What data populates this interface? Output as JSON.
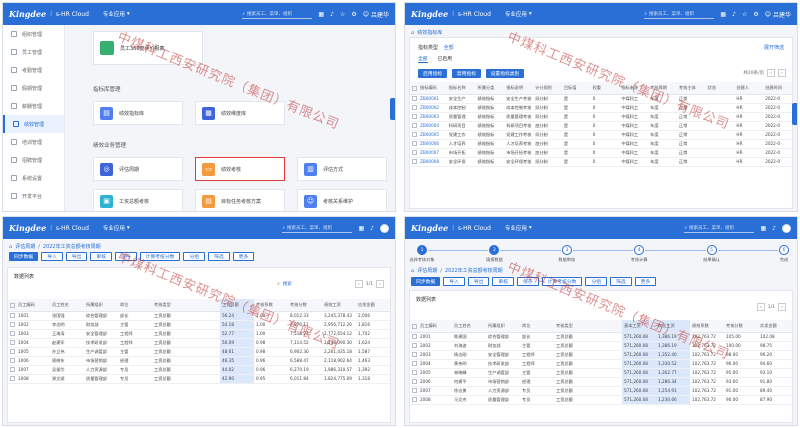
{
  "topbar": {
    "logo": "Kingdee",
    "app": "s-HR Cloud",
    "menu": "专业应用",
    "search_placeholder": "搜索员工、菜单、组织",
    "user": "吕建华"
  },
  "panel1": {
    "sidebar": [
      {
        "label": "组织管理",
        "active": false
      },
      {
        "label": "员工管理",
        "active": false
      },
      {
        "label": "考勤管理",
        "active": false
      },
      {
        "label": "假期管理",
        "active": false
      },
      {
        "label": "薪酬管理",
        "active": false
      },
      {
        "label": "绩效管理",
        "active": true
      },
      {
        "label": "培训管理",
        "active": false
      },
      {
        "label": "招聘管理",
        "active": false
      },
      {
        "label": "系统设置",
        "active": false
      },
      {
        "label": "开发平台",
        "active": false
      }
    ],
    "top_card": "员工360度评价报表",
    "section_indicator": "指标库管理",
    "tiles_indicator": [
      "绩效指标库",
      "绩效维度库"
    ],
    "section_execute": "绩效业务管理",
    "tiles_execute": [
      "评估周期",
      "绩效考核",
      "评估方式",
      "工资总额考核",
      "目标任务考核方案",
      "考核关系维护"
    ]
  },
  "panel2": {
    "breadcrumb": [
      "首页",
      "绩效指标库"
    ],
    "filter_label": "指标类型",
    "filter_value": "全部",
    "filter_link": "展开筛选",
    "tabs": [
      "全部",
      "已启用"
    ],
    "buttons": [
      "启用指标",
      "禁用指标",
      "设置指标类别"
    ],
    "pager": "共20条/页",
    "columns": [
      "指标编码",
      "指标名称",
      "所属分类",
      "指标说明",
      "计分规则",
      "目标值",
      "权重",
      "指标来源",
      "考核周期",
      "考核主体",
      "状态",
      "创建人",
      "创建时间"
    ],
    "rows": [
      [
        "ZB00001",
        "安全生产",
        "绩效指标",
        "安全生产考核",
        "扣分制",
        "是",
        "0",
        "中煤科工",
        "年度",
        "正常",
        "",
        "HR",
        "2022-0"
      ],
      [
        "ZB00002",
        "成本控制",
        "绩效指标",
        "成本控制考核",
        "扣分制",
        "是",
        "0",
        "中煤科工",
        "年度",
        "正常",
        "",
        "HR",
        "2022-0"
      ],
      [
        "ZB00003",
        "质量管理",
        "绩效指标",
        "质量管理考核",
        "扣分制",
        "是",
        "0",
        "中煤科工",
        "年度",
        "正常",
        "",
        "HR",
        "2022-0"
      ],
      [
        "ZB00004",
        "科研项目",
        "绩效指标",
        "科研项目考核",
        "加分制",
        "是",
        "0",
        "中煤科工",
        "年度",
        "正常",
        "",
        "HR",
        "2022-0"
      ],
      [
        "ZB00005",
        "党建工作",
        "绩效指标",
        "党建工作考核",
        "扣分制",
        "是",
        "0",
        "中煤科工",
        "年度",
        "正常",
        "",
        "HR",
        "2022-0"
      ],
      [
        "ZB00006",
        "人才培养",
        "绩效指标",
        "人才培养考核",
        "加分制",
        "是",
        "0",
        "中煤科工",
        "年度",
        "正常",
        "",
        "HR",
        "2022-0"
      ],
      [
        "ZB00007",
        "市场开拓",
        "绩效指标",
        "市场开拓考核",
        "加分制",
        "是",
        "0",
        "中煤科工",
        "年度",
        "正常",
        "",
        "HR",
        "2022-0"
      ],
      [
        "ZB00008",
        "安全环保",
        "绩效指标",
        "安全环保考核",
        "扣分制",
        "是",
        "0",
        "中煤科工",
        "年度",
        "正常",
        "",
        "HR",
        "2022-0"
      ]
    ]
  },
  "panel3": {
    "breadcrumb": [
      "首页",
      "评估周期",
      "2022年工资总额考核周期"
    ],
    "toolbar": [
      "同步数据",
      "导入",
      "导出",
      "审核",
      "保存",
      "计算考核分数",
      "分组",
      "筛选",
      "更多"
    ],
    "list_title": "数据列表",
    "search_placeholder": "搜索",
    "pager": "1/1",
    "columns": [
      "员工编码",
      "员工姓名",
      "所属组织",
      "岗位",
      "考核类型",
      "",
      "工资总额",
      "考核系数",
      "考核分数",
      "绩效工资",
      "应发金额"
    ],
    "rows": [
      [
        "1001",
        "张国强",
        "综合管理部",
        "部长",
        "工资总额",
        "",
        "56.24",
        "1.00",
        "8,012.33",
        "3,245,378.43",
        "2,006"
      ],
      [
        "1002",
        "李志明",
        "财务部",
        "主管",
        "工资总额",
        "",
        "54.18",
        "1.00",
        "7,870.11",
        "2,956,712.26",
        "1,816"
      ],
      [
        "1003",
        "王海涛",
        "安全管理部",
        "工程师",
        "工资总额",
        "",
        "52.77",
        "1.00",
        "7,516.24",
        "2,772,654.12",
        "1,702"
      ],
      [
        "1004",
        "赵建军",
        "技术研发部",
        "工程师",
        "工资总额",
        "",
        "50.09",
        "0.98",
        "7,114.52",
        "2,438,090.30",
        "1,624"
      ],
      [
        "1005",
        "孙立伟",
        "生产调度部",
        "主管",
        "工资总额",
        "",
        "48.61",
        "0.98",
        "6,902.30",
        "2,261,435.18",
        "1,587"
      ],
      [
        "1006",
        "周晓东",
        "市场营销部",
        "经理",
        "工资总额",
        "",
        "46.35",
        "0.96",
        "6,588.47",
        "2,118,902.64",
        "1,463"
      ],
      [
        "1007",
        "吴振华",
        "人力资源部",
        "专员",
        "工资总额",
        "",
        "44.02",
        "0.96",
        "6,270.19",
        "1,986,310.57",
        "1,392"
      ],
      [
        "1008",
        "郑文斌",
        "质量管理部",
        "专员",
        "工资总额",
        "",
        "42.90",
        "0.95",
        "6,011.84",
        "1,824,775.09",
        "1,318"
      ]
    ]
  },
  "panel4": {
    "steps": [
      "选择考核对象",
      "填报数据",
      "数据审核",
      "考核计算",
      "结果确认",
      "完成"
    ],
    "breadcrumb": [
      "首页",
      "评估周期",
      "2022年工资总额考核周期"
    ],
    "toolbar": [
      "同步数据",
      "导入",
      "导出",
      "审核",
      "保存",
      "计算考核分数",
      "分组",
      "筛选",
      "更多"
    ],
    "list_title": "数据列表",
    "pager": "1/1",
    "columns": [
      "员工编码",
      "员工姓名",
      "所属组织",
      "岗位",
      "考核类型",
      "",
      "基本工资",
      "岗位工资",
      "绩效系数",
      "考核分数",
      "实发金额"
    ],
    "rows": [
      [
        "2001",
        "陈建国",
        "综合管理部",
        "部长",
        "工资总额",
        "",
        "571,260.08",
        "1,386.19",
        "102,763.72",
        "105.00",
        "102.08"
      ],
      [
        "2002",
        "刘海波",
        "财务部",
        "主管",
        "工资总额",
        "",
        "571,260.08",
        "1,386.19",
        "102,763.72",
        "100.00",
        "98.75"
      ],
      [
        "2003",
        "杨志刚",
        "安全管理部",
        "工程师",
        "工资总额",
        "",
        "571,260.08",
        "1,352.40",
        "102,763.72",
        "98.00",
        "96.20"
      ],
      [
        "2004",
        "黄伟明",
        "技术研发部",
        "工程师",
        "工资总额",
        "",
        "571,260.08",
        "1,330.52",
        "102,763.72",
        "96.00",
        "94.60"
      ],
      [
        "2005",
        "林晓峰",
        "生产调度部",
        "主管",
        "工资总额",
        "",
        "571,260.08",
        "1,302.77",
        "102,763.72",
        "95.00",
        "93.10"
      ],
      [
        "2006",
        "何建平",
        "市场营销部",
        "经理",
        "工资总额",
        "",
        "571,260.08",
        "1,286.34",
        "102,763.72",
        "93.00",
        "91.80"
      ],
      [
        "2007",
        "徐志勇",
        "人力资源部",
        "专员",
        "工资总额",
        "",
        "571,260.08",
        "1,254.91",
        "102,763.72",
        "91.00",
        "89.40"
      ],
      [
        "2008",
        "马文杰",
        "质量管理部",
        "专员",
        "工资总额",
        "",
        "571,260.08",
        "1,230.66",
        "102,763.72",
        "90.00",
        "87.90"
      ]
    ]
  },
  "watermark": "中煤科工西安研究院（集团）有限公司"
}
